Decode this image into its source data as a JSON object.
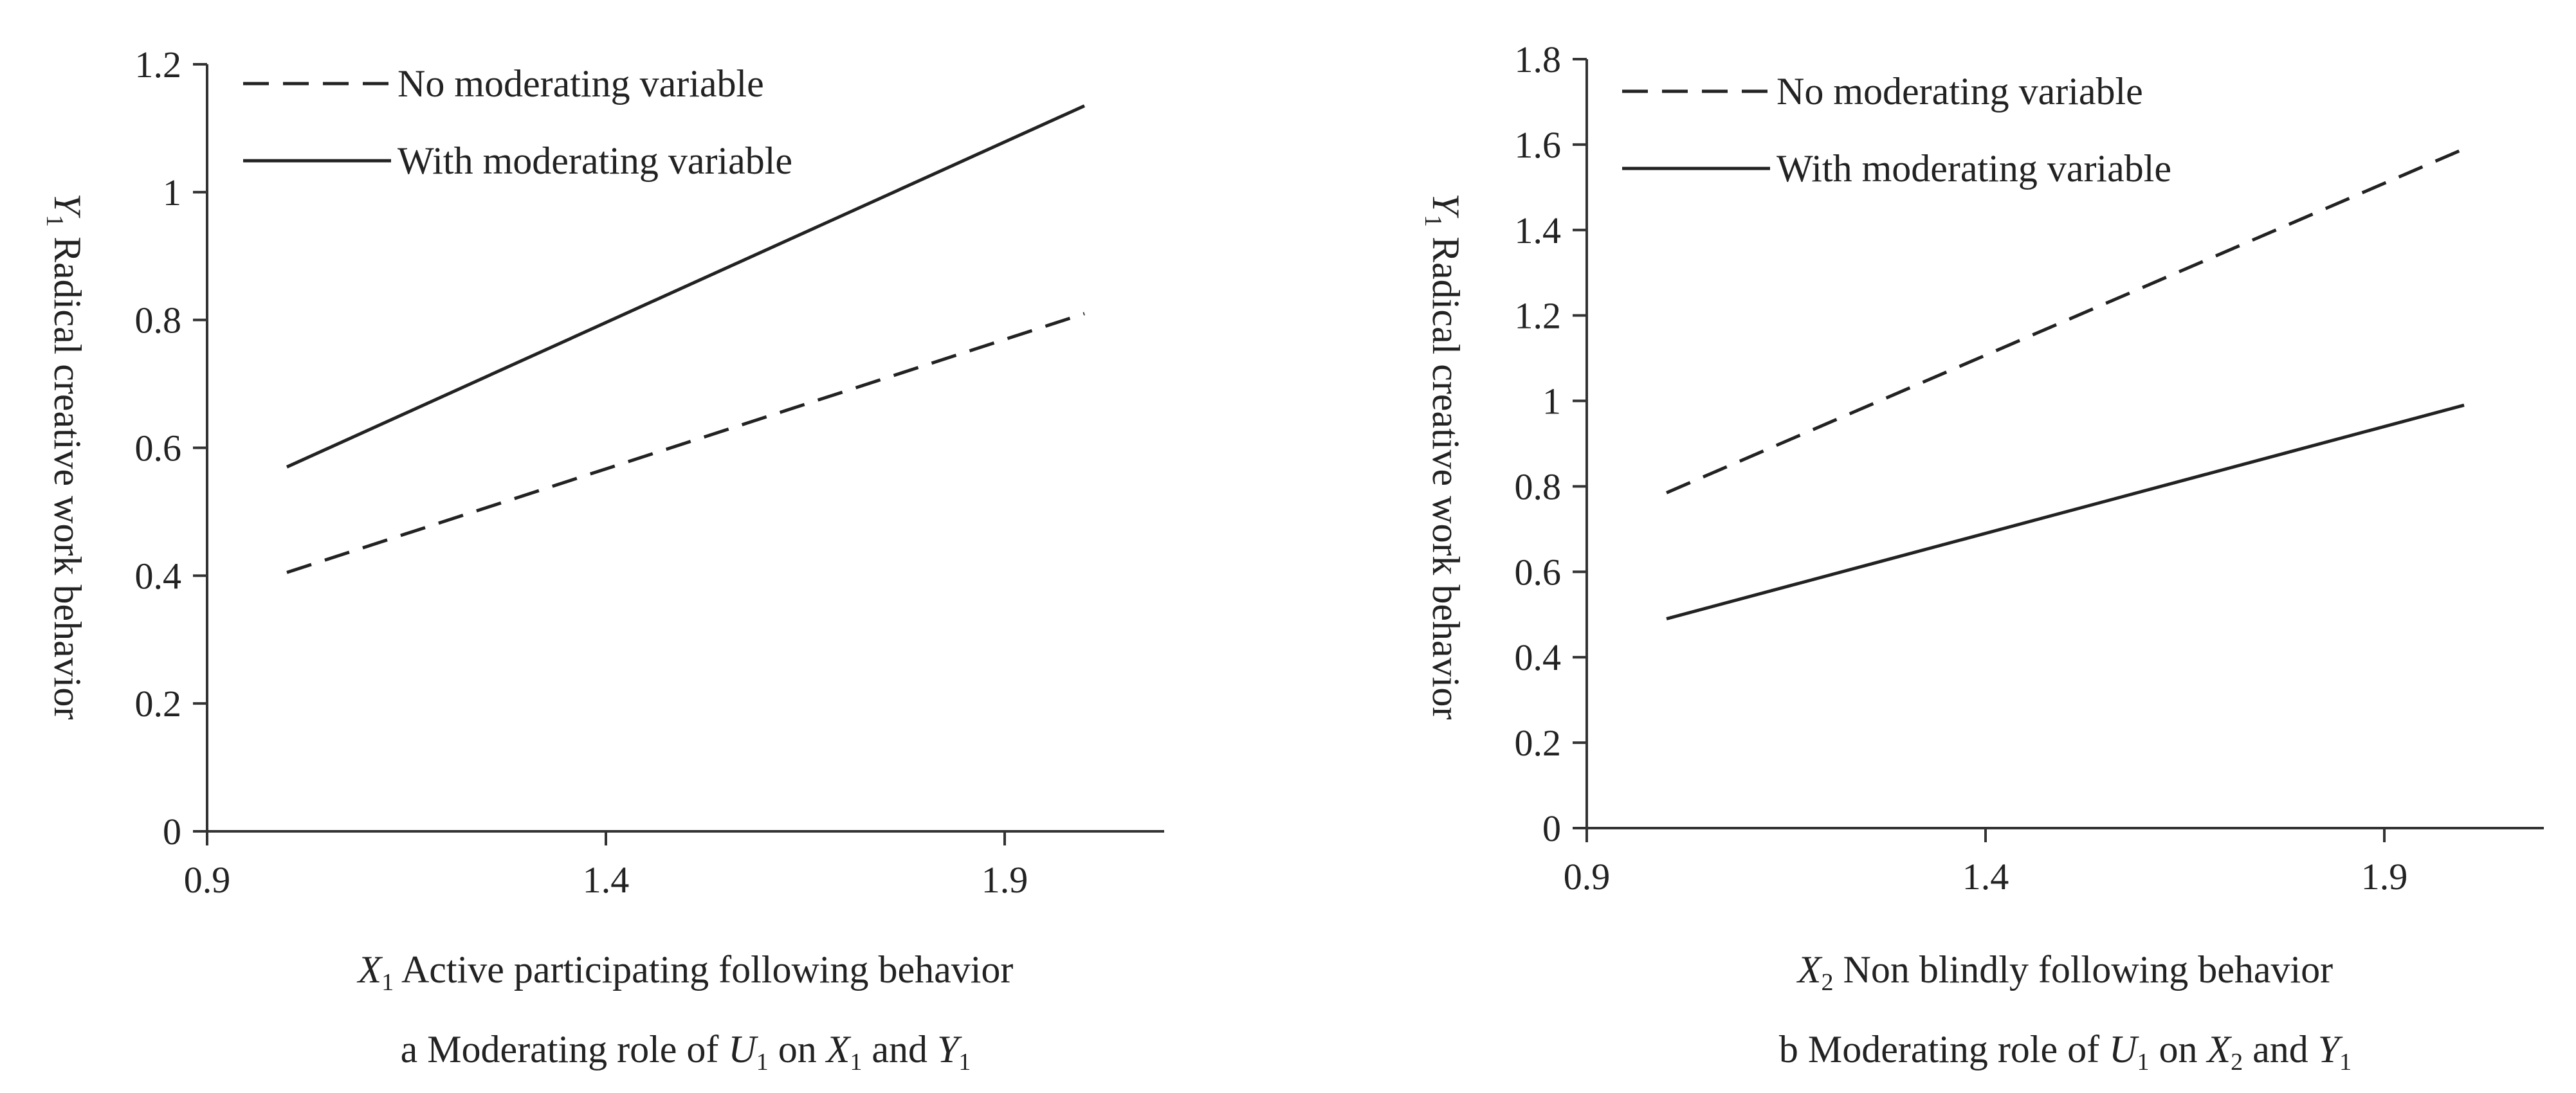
{
  "chart_data": [
    {
      "type": "line",
      "panel": "a",
      "caption": {
        "prefix": "a  Moderating role of ",
        "var1": "U",
        "var1_sub": "1",
        "mid1": " on ",
        "var2": "X",
        "var2_sub": "1",
        "mid2": " and ",
        "var3": "Y",
        "var3_sub": "1"
      },
      "xlabel": {
        "var": "X",
        "sub": "1",
        "text": " Active participating following behavior"
      },
      "ylabel": {
        "var": "Y",
        "sub": "1",
        "text": " Radical creative work behavior"
      },
      "xlim": [
        0.9,
        2.1
      ],
      "ylim": [
        0,
        1.2
      ],
      "xticks": [
        0.9,
        1.4,
        1.9
      ],
      "xtick_labels": [
        "0.9",
        "1.4",
        "1.9"
      ],
      "yticks": [
        0,
        0.2,
        0.4,
        0.6,
        0.8,
        1,
        1.2
      ],
      "ytick_labels": [
        "0",
        "0.2",
        "0.4",
        "0.6",
        "0.8",
        "1",
        "1.2"
      ],
      "grid": false,
      "legend_position": "top-left",
      "series": [
        {
          "name": "No moderating variable",
          "style": "dashed",
          "x": [
            1,
            2
          ],
          "y": [
            0.405,
            0.81
          ]
        },
        {
          "name": "With moderating variable",
          "style": "solid",
          "x": [
            1,
            2
          ],
          "y": [
            0.57,
            1.135
          ]
        }
      ]
    },
    {
      "type": "line",
      "panel": "b",
      "caption": {
        "prefix": "b  Moderating role of ",
        "var1": "U",
        "var1_sub": "1",
        "mid1": " on ",
        "var2": "X",
        "var2_sub": "2",
        "mid2": " and ",
        "var3": "Y",
        "var3_sub": "1"
      },
      "xlabel": {
        "var": "X",
        "sub": "2",
        "text": " Non blindly following behavior"
      },
      "ylabel": {
        "var": "Y",
        "sub": "1",
        "text": " Radical creative work behavior"
      },
      "xlim": [
        0.9,
        2.1
      ],
      "ylim": [
        0,
        1.8
      ],
      "xticks": [
        0.9,
        1.4,
        1.9
      ],
      "xtick_labels": [
        "0.9",
        "1.4",
        "1.9"
      ],
      "yticks": [
        0,
        0.2,
        0.4,
        0.6,
        0.8,
        1,
        1.2,
        1.4,
        1.6,
        1.8
      ],
      "ytick_labels": [
        "0",
        "0.2",
        "0.4",
        "0.6",
        "0.8",
        "1",
        "1.2",
        "1.4",
        "1.6",
        "1.8"
      ],
      "grid": false,
      "legend_position": "top-left",
      "series": [
        {
          "name": "No moderating variable",
          "style": "dashed",
          "x": [
            1,
            2
          ],
          "y": [
            0.785,
            1.59
          ]
        },
        {
          "name": "With moderating variable",
          "style": "solid",
          "x": [
            1,
            2
          ],
          "y": [
            0.49,
            0.99
          ]
        }
      ]
    }
  ]
}
